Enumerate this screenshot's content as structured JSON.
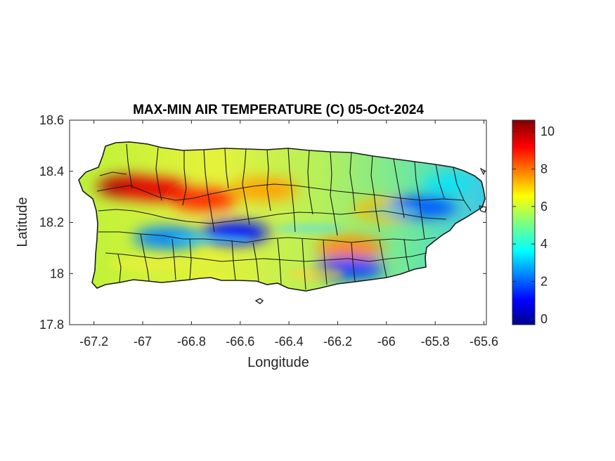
{
  "figure": {
    "title": "MAX-MIN AIR TEMPERATURE (C) 05-Oct-2024",
    "xlabel": "Longitude",
    "ylabel": "Latitude"
  },
  "map": {
    "region": "Puerto Rico",
    "variable": "max-min air temperature",
    "units": "C",
    "colormap": "jet",
    "xlim": [
      -67.3,
      -65.59
    ],
    "ylim": [
      17.8,
      18.6
    ],
    "xticks": [
      -67.2,
      -67,
      -66.8,
      -66.6,
      -66.4,
      -66.2,
      -66,
      -65.8,
      -65.6
    ],
    "xtick_labels": [
      "-67.2",
      "-67",
      "-66.8",
      "-66.6",
      "-66.4",
      "-66.2",
      "-66",
      "-65.8",
      "-65.6"
    ],
    "yticks": [
      18.6,
      18.4,
      18.2,
      18,
      17.8
    ],
    "ytick_labels": [
      "18.6",
      "18.4",
      "18.2",
      "18",
      "17.8"
    ],
    "hotspots": [
      {
        "lon": -67.05,
        "lat": 18.34,
        "value": 10
      },
      {
        "lon": -66.95,
        "lat": 18.33,
        "value": 9.5
      },
      {
        "lon": -66.75,
        "lat": 18.29,
        "value": 8.8
      },
      {
        "lon": -66.5,
        "lat": 18.33,
        "value": 7.5
      },
      {
        "lon": -66.15,
        "lat": 18.1,
        "value": 7.8
      },
      {
        "lon": -66.0,
        "lat": 18.25,
        "value": 7.2
      },
      {
        "lon": -66.62,
        "lat": 18.16,
        "value": 1.2
      },
      {
        "lon": -66.9,
        "lat": 18.14,
        "value": 2.5
      },
      {
        "lon": -66.15,
        "lat": 18.02,
        "value": 1.8
      },
      {
        "lon": -65.85,
        "lat": 18.26,
        "value": 2.0
      },
      {
        "lon": -65.75,
        "lat": 18.35,
        "value": 3.5
      }
    ]
  },
  "colorbar": {
    "min": -0.3,
    "max": 10.6,
    "ticks": [
      0,
      2,
      4,
      6,
      8,
      10
    ],
    "tick_labels": [
      "0",
      "2",
      "4",
      "6",
      "8",
      "10"
    ]
  }
}
